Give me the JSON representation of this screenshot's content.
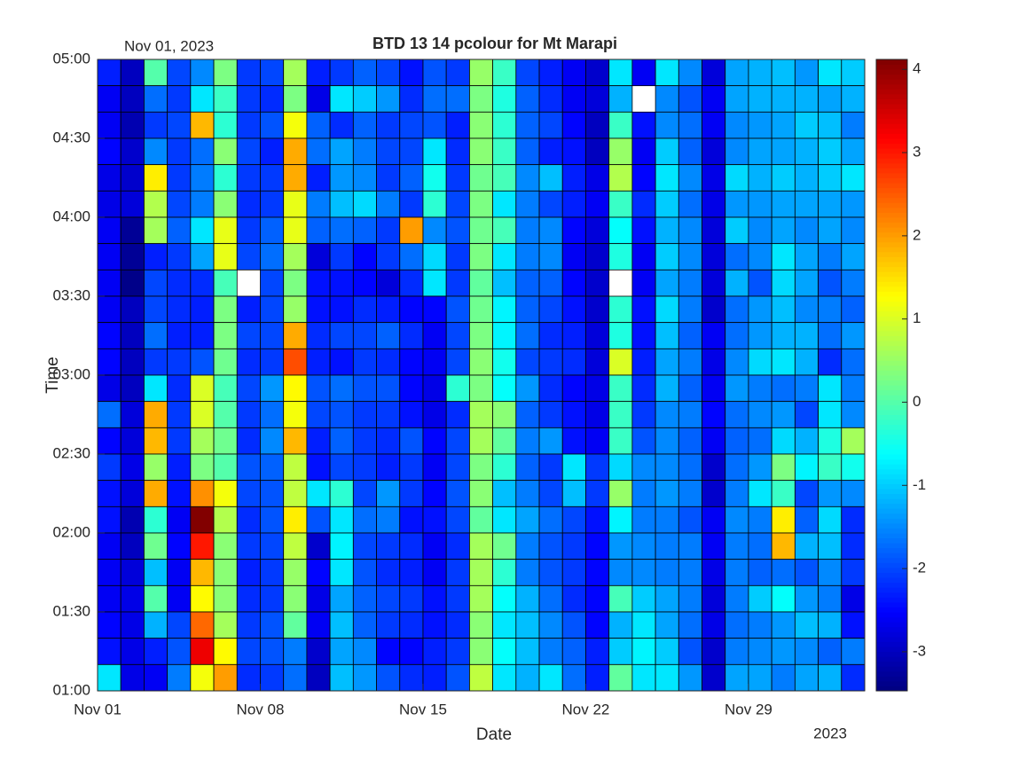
{
  "chart_data": {
    "type": "pcolor",
    "title": "BTD 13 14 pcolour for Mt Marapi",
    "corner_label": "Nov 01, 2023",
    "x_year_label": "2023",
    "xlabel": "Date",
    "ylabel": "Time",
    "colormap": "jet",
    "xlim": [
      1,
      34
    ],
    "xticks": [
      {
        "value": 1,
        "label": "Nov 01"
      },
      {
        "value": 8,
        "label": "Nov 08"
      },
      {
        "value": 15,
        "label": "Nov 15"
      },
      {
        "value": 22,
        "label": "Nov 22"
      },
      {
        "value": 29,
        "label": "Nov 29"
      }
    ],
    "ylim": [
      1,
      5
    ],
    "yticks": [
      {
        "value": 1,
        "label": "01:00"
      },
      {
        "value": 1.5,
        "label": "01:30"
      },
      {
        "value": 2,
        "label": "02:00"
      },
      {
        "value": 2.5,
        "label": "02:30"
      },
      {
        "value": 3,
        "label": "03:00"
      },
      {
        "value": 3.5,
        "label": "03:30"
      },
      {
        "value": 4,
        "label": "04:00"
      },
      {
        "value": 4.5,
        "label": "04:30"
      },
      {
        "value": 5,
        "label": "05:00"
      }
    ],
    "clim": [
      -3.47,
      4.12
    ],
    "cticks": [
      -3,
      -2,
      -1,
      0,
      1,
      2,
      3,
      4
    ],
    "z": [
      [
        -2.3,
        -3.0,
        0.0,
        -2.0,
        -1.5,
        0.3,
        -2.1,
        -2.0,
        0.6,
        -2.3,
        -2.1,
        -1.8,
        -2.0,
        -2.4,
        -1.9,
        -2.1,
        0.5,
        -0.2,
        -2.0,
        -2.3,
        -2.6,
        -2.9,
        -0.8,
        -2.6,
        -0.8,
        -1.5,
        -2.8,
        -1.3,
        -1.2,
        -1.1,
        -1.4,
        -0.8,
        -1.0
      ],
      [
        -2.6,
        -3.0,
        -1.7,
        -2.1,
        -0.8,
        -0.2,
        -2.1,
        -2.2,
        0.3,
        -2.7,
        -0.8,
        -1.0,
        -1.4,
        -2.2,
        -1.7,
        -1.7,
        0.3,
        -0.4,
        -1.8,
        -2.2,
        -2.6,
        -2.8,
        -1.2,
        null,
        -1.5,
        -1.9,
        -2.6,
        -1.3,
        -1.2,
        -1.2,
        -1.2,
        -1.3,
        -1.2
      ],
      [
        -2.6,
        -3.1,
        -2.1,
        -2.0,
        1.8,
        -0.3,
        -2.1,
        -1.9,
        1.2,
        -1.8,
        -2.2,
        -1.8,
        -2.1,
        -2.0,
        -1.9,
        -2.3,
        0.4,
        -0.3,
        -1.8,
        -2.0,
        -2.5,
        -3.0,
        -0.2,
        -2.4,
        -1.5,
        -1.7,
        -2.6,
        -1.5,
        -1.4,
        -1.3,
        -1.0,
        -1.1,
        -1.6
      ],
      [
        -2.5,
        -2.9,
        -1.5,
        -2.1,
        -1.7,
        0.4,
        -2.0,
        -2.3,
        1.9,
        -1.7,
        -1.3,
        -1.6,
        -2.0,
        -2.0,
        -0.8,
        -2.2,
        0.4,
        -0.2,
        -1.8,
        -2.3,
        -2.4,
        -3.0,
        0.5,
        -2.6,
        -1.0,
        -1.8,
        -2.8,
        -1.5,
        -1.3,
        -1.3,
        -1.2,
        -1.0,
        -1.3
      ],
      [
        -2.7,
        -2.9,
        1.4,
        -2.1,
        -1.6,
        -0.3,
        -2.1,
        -2.1,
        1.9,
        -2.3,
        -1.4,
        -1.5,
        -2.1,
        -1.8,
        -0.5,
        -2.1,
        0.2,
        -0.1,
        -1.5,
        -1.1,
        -2.3,
        -2.7,
        0.7,
        -2.5,
        -0.8,
        -1.5,
        -2.7,
        -0.9,
        -1.2,
        -1.0,
        -1.2,
        -1.0,
        -0.8
      ],
      [
        -2.7,
        -2.8,
        0.7,
        -2.0,
        -1.6,
        0.4,
        -2.2,
        -2.1,
        1.1,
        -1.6,
        -1.1,
        -0.9,
        -1.6,
        -2.1,
        -0.3,
        -2.0,
        0.3,
        -0.8,
        -1.6,
        -2.0,
        -2.3,
        -2.6,
        -0.2,
        -2.2,
        -1.0,
        -1.7,
        -2.7,
        -1.4,
        -1.4,
        -1.3,
        -1.3,
        -1.3,
        -1.4
      ],
      [
        -2.6,
        -3.3,
        0.6,
        -1.8,
        -0.8,
        1.1,
        -2.1,
        -1.8,
        1.1,
        -1.8,
        -1.7,
        -1.8,
        -2.1,
        2.0,
        -1.5,
        -1.9,
        0.2,
        -0.1,
        -1.6,
        -1.5,
        -2.5,
        -2.8,
        -0.6,
        -2.4,
        -1.2,
        -1.5,
        -2.8,
        -1.0,
        -1.5,
        -1.3,
        -1.5,
        -1.3,
        -1.5
      ],
      [
        -2.6,
        -3.3,
        -2.3,
        -2.1,
        -1.3,
        1.1,
        -2.0,
        -1.7,
        0.6,
        -2.8,
        -2.1,
        -2.5,
        -2.1,
        -1.7,
        -0.9,
        -2.1,
        0.3,
        -0.8,
        -1.6,
        -1.5,
        -2.6,
        -2.9,
        -0.4,
        -2.6,
        -1.0,
        -1.5,
        -2.8,
        -1.7,
        -1.5,
        -0.8,
        -1.3,
        -1.6,
        -1.3
      ],
      [
        -2.6,
        -3.4,
        -2.0,
        -2.2,
        -2.2,
        -0.1,
        null,
        -2.0,
        0.3,
        -2.4,
        -2.4,
        -2.5,
        -2.8,
        -2.2,
        -0.8,
        -2.1,
        0.1,
        -1.1,
        -1.8,
        -1.8,
        -2.5,
        -2.9,
        null,
        -2.6,
        -1.3,
        -1.6,
        -2.8,
        -1.2,
        -1.9,
        -0.9,
        -1.3,
        -1.9,
        -1.6
      ],
      [
        -2.6,
        -3.0,
        -2.0,
        -2.2,
        -2.3,
        0.3,
        -2.3,
        -2.0,
        0.5,
        -2.4,
        -2.4,
        -2.2,
        -2.3,
        -2.5,
        -2.5,
        -1.9,
        0.2,
        -0.7,
        -1.8,
        -2.0,
        -2.4,
        -2.9,
        -0.3,
        -2.4,
        -0.9,
        -1.6,
        -2.9,
        -1.7,
        -1.4,
        -1.1,
        -1.5,
        -1.6,
        -1.8
      ],
      [
        -2.5,
        -3.0,
        -1.7,
        -2.3,
        -2.3,
        0.3,
        -2.0,
        -2.0,
        1.9,
        -2.2,
        -2.0,
        -2.0,
        -1.8,
        -2.2,
        -2.6,
        -2.0,
        0.3,
        -0.7,
        -1.7,
        -2.2,
        -2.3,
        -2.8,
        -0.4,
        -2.4,
        -1.1,
        -1.8,
        -2.6,
        -1.7,
        -1.4,
        -1.2,
        -1.2,
        -1.7,
        -1.4
      ],
      [
        -2.5,
        -3.0,
        -2.1,
        -2.1,
        -1.9,
        0.2,
        -2.2,
        -2.1,
        2.6,
        -2.3,
        -2.4,
        -2.1,
        -2.2,
        -2.5,
        -2.6,
        -2.0,
        0.4,
        -0.5,
        -2.0,
        -2.1,
        -2.2,
        -2.8,
        1.0,
        -2.3,
        -1.3,
        -1.6,
        -2.7,
        -1.5,
        -0.9,
        -0.8,
        -1.2,
        -2.2,
        -1.7
      ],
      [
        -2.7,
        -3.0,
        -0.8,
        -2.2,
        1.0,
        -0.1,
        -2.0,
        -1.4,
        1.3,
        -1.9,
        -1.7,
        -1.9,
        -1.9,
        -2.5,
        -2.7,
        -0.3,
        0.3,
        -0.6,
        -1.4,
        -2.2,
        -2.5,
        -2.7,
        -0.2,
        -2.2,
        -1.2,
        -1.8,
        -2.6,
        -1.4,
        -1.6,
        -1.7,
        -1.6,
        -0.8,
        -1.6
      ],
      [
        -1.7,
        -2.8,
        1.9,
        -2.1,
        1.0,
        0.0,
        -2.1,
        -1.7,
        1.2,
        -2.0,
        -1.9,
        -2.1,
        -2.1,
        -2.4,
        -2.7,
        -2.2,
        0.6,
        0.4,
        -1.8,
        -2.1,
        -2.4,
        -2.7,
        -0.2,
        -2.1,
        -1.5,
        -1.6,
        -2.5,
        -1.7,
        -1.5,
        -1.4,
        -2.0,
        -0.8,
        -1.5
      ],
      [
        -2.5,
        -2.8,
        1.8,
        -2.1,
        0.6,
        0.2,
        -2.2,
        -1.5,
        1.8,
        -2.3,
        -1.8,
        -2.1,
        -2.2,
        -1.9,
        -2.5,
        -2.0,
        0.6,
        0.1,
        -1.6,
        -1.4,
        -2.4,
        -2.6,
        -0.2,
        -1.9,
        -1.5,
        -1.8,
        -2.6,
        -1.8,
        -1.7,
        -0.9,
        -1.2,
        -0.4,
        0.6
      ],
      [
        -2.1,
        -2.7,
        0.5,
        -2.3,
        0.3,
        0.0,
        -1.9,
        -1.8,
        0.8,
        -2.4,
        -2.0,
        -2.1,
        -2.3,
        -2.1,
        -2.6,
        -2.0,
        0.3,
        -0.3,
        -1.8,
        -2.1,
        -0.8,
        -2.1,
        -0.9,
        -1.5,
        -1.5,
        -1.7,
        -2.9,
        -1.7,
        -1.4,
        0.3,
        -0.7,
        -0.2,
        -0.5
      ],
      [
        -2.4,
        -2.8,
        1.9,
        -2.4,
        2.1,
        1.2,
        -2.0,
        -1.9,
        0.8,
        -0.8,
        -0.3,
        -2.0,
        -1.4,
        -2.1,
        -2.5,
        -1.9,
        0.4,
        -1.1,
        -1.6,
        -2.0,
        -1.1,
        -2.1,
        0.5,
        -1.6,
        -1.4,
        -1.6,
        -2.9,
        -1.6,
        -0.8,
        -0.2,
        -2.0,
        -1.4,
        -1.5
      ],
      [
        -2.4,
        -3.1,
        -0.3,
        -2.6,
        4.1,
        0.7,
        -2.2,
        -1.9,
        1.4,
        -1.9,
        -0.8,
        -1.7,
        -1.6,
        -2.4,
        -2.4,
        -2.0,
        0.1,
        -0.8,
        -1.3,
        -1.7,
        -2.0,
        -2.4,
        -0.7,
        -1.6,
        -1.6,
        -1.9,
        -2.6,
        -1.5,
        -1.6,
        1.4,
        -1.8,
        -0.9,
        -2.2
      ],
      [
        -2.6,
        -3.0,
        0.2,
        -2.5,
        3.0,
        0.4,
        -2.1,
        -2.0,
        0.8,
        -2.9,
        -0.7,
        -2.0,
        -2.1,
        -2.2,
        -2.6,
        -2.2,
        0.6,
        0.2,
        -1.6,
        -1.9,
        -2.1,
        -2.5,
        -1.4,
        -1.5,
        -1.6,
        -1.6,
        -2.6,
        -1.6,
        -1.7,
        1.8,
        -1.2,
        -1.1,
        -2.2
      ],
      [
        -2.6,
        -2.8,
        -1.1,
        -2.6,
        1.8,
        0.4,
        -2.3,
        -2.1,
        0.5,
        -2.5,
        -0.8,
        -1.9,
        -2.2,
        -2.3,
        -2.6,
        -2.1,
        0.6,
        -0.3,
        -1.6,
        -1.9,
        -2.1,
        -2.5,
        -1.5,
        -1.5,
        -1.6,
        -1.6,
        -2.7,
        -1.6,
        -1.8,
        -1.7,
        -1.9,
        -1.5,
        -2.1
      ],
      [
        -2.6,
        -2.7,
        0.0,
        -2.6,
        1.3,
        0.4,
        -2.2,
        -2.1,
        0.4,
        -2.7,
        -1.3,
        -1.8,
        -2.0,
        -2.1,
        -2.4,
        -2.1,
        0.6,
        -0.6,
        -1.2,
        -1.7,
        -2.2,
        -2.5,
        -0.1,
        -1.0,
        -1.3,
        -1.6,
        -2.8,
        -1.6,
        -1.0,
        -0.6,
        -1.4,
        -1.6,
        -2.7
      ],
      [
        -2.5,
        -2.7,
        -1.2,
        -2.0,
        2.4,
        0.6,
        -2.1,
        -1.9,
        0.1,
        -2.6,
        -1.1,
        -1.8,
        -2.1,
        -2.2,
        -2.4,
        -2.2,
        0.4,
        -0.8,
        -1.1,
        -1.5,
        -1.9,
        -2.5,
        -1.2,
        -0.8,
        -1.3,
        -1.7,
        -2.7,
        -1.7,
        -1.6,
        -1.4,
        -1.1,
        -1.2,
        -2.4
      ],
      [
        -2.4,
        -2.7,
        -2.3,
        -1.9,
        3.3,
        1.3,
        -2.0,
        -1.9,
        -1.6,
        -2.9,
        -1.3,
        -1.5,
        -2.5,
        -2.5,
        -2.3,
        -2.1,
        0.4,
        -0.6,
        -1.1,
        -1.6,
        -1.8,
        -2.3,
        -1.0,
        -0.7,
        -1.0,
        -1.9,
        -2.9,
        -1.6,
        -1.5,
        -1.4,
        -1.5,
        -1.8,
        -1.6
      ],
      [
        -0.8,
        -2.7,
        -2.6,
        -1.6,
        1.2,
        2.0,
        -2.2,
        -2.1,
        -1.7,
        -3.0,
        -1.1,
        -1.4,
        -1.9,
        -2.2,
        -2.3,
        -1.9,
        0.8,
        -0.8,
        -1.2,
        -0.8,
        -1.7,
        -2.3,
        0.1,
        -0.8,
        -0.8,
        -1.4,
        -2.9,
        -1.3,
        -1.3,
        -1.6,
        -1.3,
        -1.2,
        -2.2
      ]
    ]
  }
}
